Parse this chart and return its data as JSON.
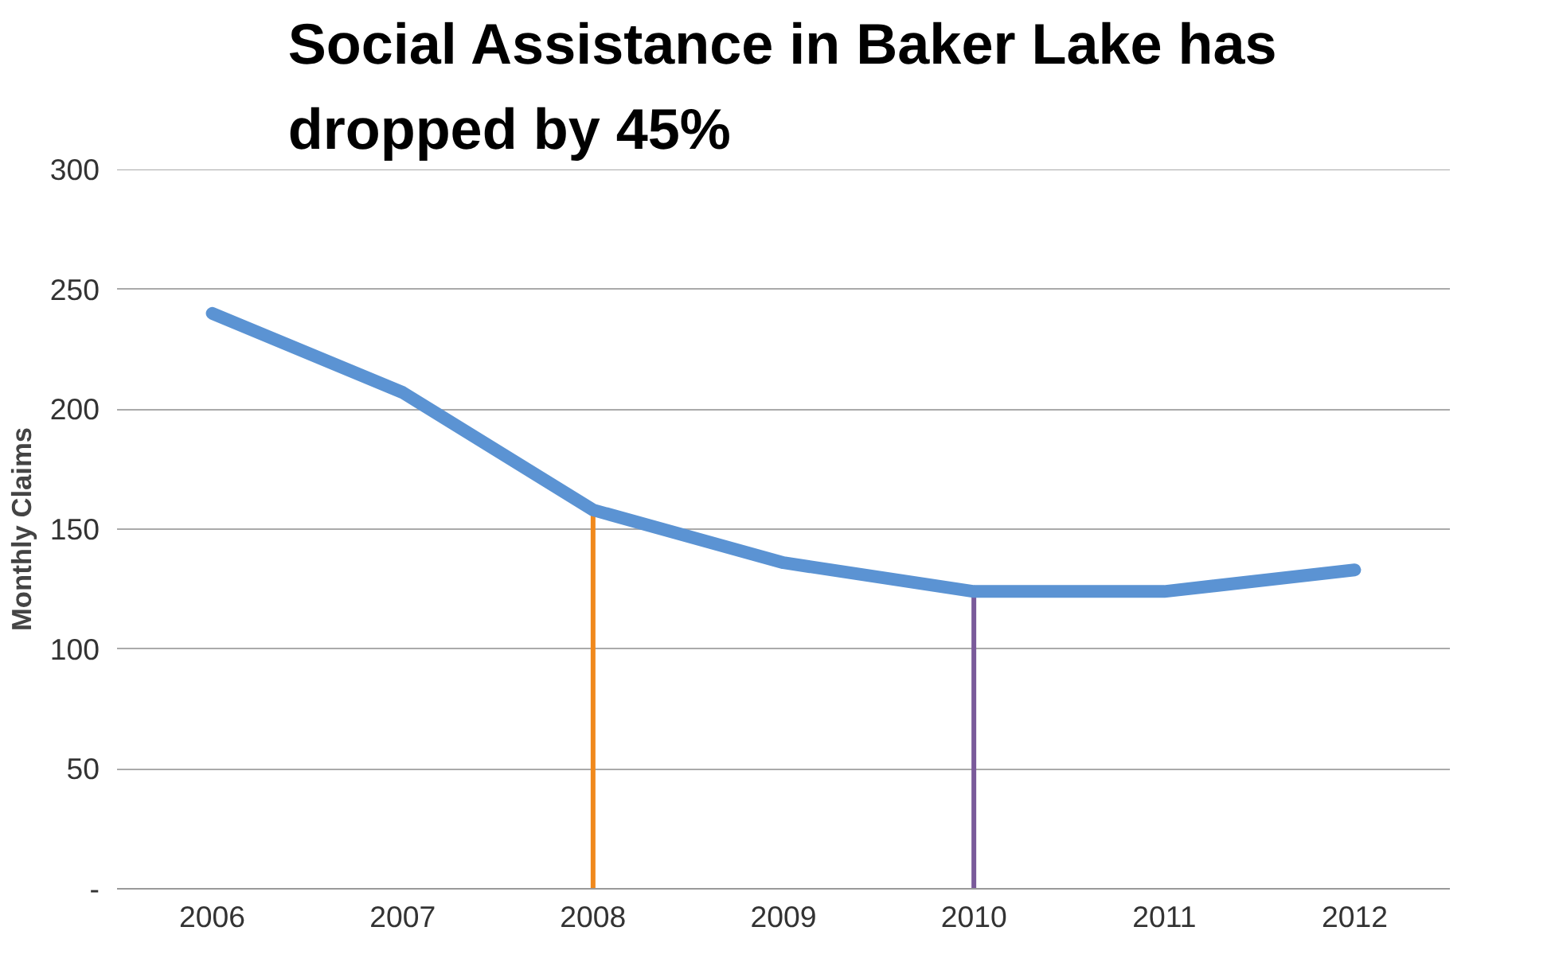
{
  "chart_data": {
    "type": "line",
    "title": "Social Assistance in Baker Lake has dropped by 45%",
    "ylabel": "Monthly Claims",
    "categories": [
      "2006",
      "2007",
      "2008",
      "2009",
      "2010",
      "2011",
      "2012"
    ],
    "series": [
      {
        "color": "#5b93d3",
        "values": [
          240,
          207,
          158,
          136,
          124,
          124,
          133
        ]
      }
    ],
    "ylim": [
      0,
      300
    ],
    "yticks": [
      {
        "value": 0,
        "label": "-"
      },
      50,
      100,
      150,
      200,
      250,
      300
    ],
    "grid": "y",
    "marker": "none",
    "line_style": "solid",
    "ref_lines": [
      {
        "axis": "x",
        "value": "2008",
        "color": "#f0891c"
      },
      {
        "axis": "x",
        "value": "2010",
        "color": "#7a5a9a"
      }
    ]
  }
}
